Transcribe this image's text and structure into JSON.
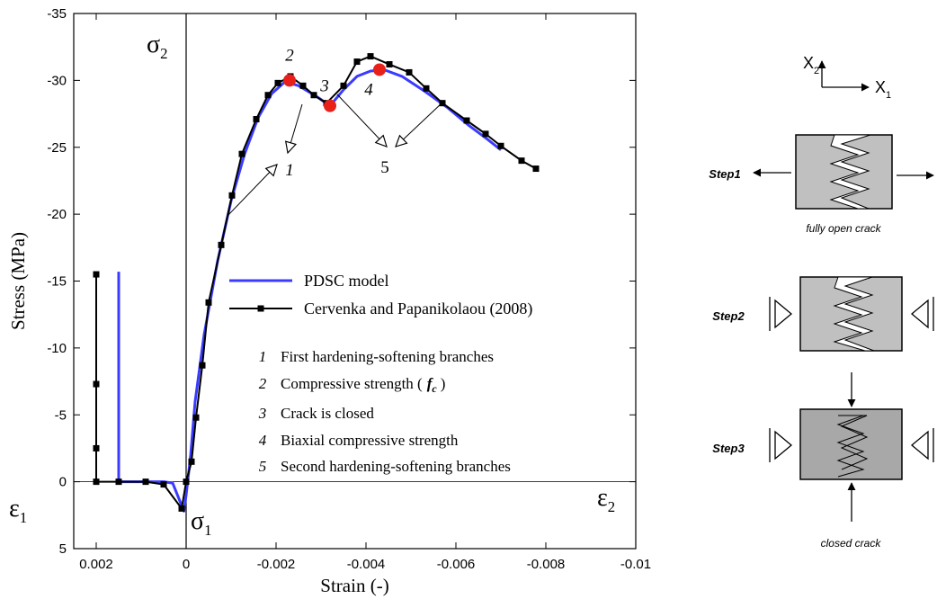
{
  "chart_data": {
    "type": "line",
    "xlabel": "Strain (-)",
    "ylabel": "Stress (MPa)",
    "xlim": [
      0.0025,
      -0.01
    ],
    "ylim": [
      5,
      -35
    ],
    "xticks": [
      0.002,
      0,
      -0.002,
      -0.004,
      -0.006,
      -0.008,
      -0.01
    ],
    "yticks": [
      5,
      0,
      -5,
      -10,
      -15,
      -20,
      -25,
      -30,
      -35
    ],
    "series": [
      {
        "name": "PDSC model",
        "color": "#3b3bff",
        "marker": "none",
        "x": [
          0.0015,
          0.0015,
          0.0005,
          0.0003,
          5e-05,
          0,
          -0.0001,
          -0.0002,
          -0.0004,
          -0.0007,
          -0.001,
          -0.0013,
          -0.0016,
          -0.0019,
          -0.0022,
          -0.0025,
          -0.0029,
          -0.0032,
          -0.0035,
          -0.0038,
          -0.0041,
          -0.0044,
          -0.0048,
          -0.0053,
          -0.0058,
          -0.0063,
          -0.0067,
          -0.007
        ],
        "y": [
          -15.7,
          0,
          0,
          0.1,
          2.2,
          1,
          -2,
          -6,
          -11,
          -16.5,
          -21,
          -24.5,
          -27.2,
          -29,
          -29.9,
          -29.6,
          -28.8,
          -28.1,
          -29.3,
          -30.3,
          -30.7,
          -30.8,
          -30.3,
          -29.2,
          -28,
          -26.6,
          -25.6,
          -24.8
        ]
      },
      {
        "name": "Cervenka and Papanikolaou (2008)",
        "color": "#000000",
        "marker": "square",
        "x": [
          0.002,
          0.002,
          0.002,
          0.002,
          0.0015,
          0.0009,
          0.0005,
          0.0001,
          0,
          -0.00012,
          -0.00022,
          -0.00036,
          -0.0005,
          -0.00078,
          -0.00102,
          -0.00124,
          -0.00156,
          -0.00182,
          -0.00204,
          -0.00232,
          -0.0026,
          -0.00284,
          -0.00312,
          -0.0035,
          -0.0038,
          -0.0041,
          -0.00452,
          -0.00496,
          -0.00534,
          -0.0057,
          -0.00624,
          -0.00666,
          -0.007,
          -0.00746,
          -0.00778
        ],
        "y": [
          -15.5,
          -7.3,
          -2.5,
          0,
          0,
          0,
          0.2,
          2.0,
          0,
          -1.5,
          -4.8,
          -8.7,
          -13.4,
          -17.7,
          -21.4,
          -24.5,
          -27.1,
          -28.9,
          -29.8,
          -30.3,
          -29.6,
          -28.9,
          -28.3,
          -29.6,
          -31.4,
          -31.8,
          -31.2,
          -30.6,
          -29.4,
          -28.3,
          -27.0,
          -26.0,
          -25.1,
          -24.0,
          -23.4
        ]
      }
    ],
    "points": {
      "color": "#e8201a",
      "x": [
        -0.0023,
        -0.0032,
        -0.0043
      ],
      "y": [
        -30,
        -28.1,
        -30.8
      ],
      "labels": [
        "2",
        "3",
        "4"
      ]
    },
    "annotations": [
      "1",
      "5"
    ],
    "axis_symbols": [
      {
        "symbol": "σ",
        "subscript": "2"
      },
      {
        "symbol": "ε",
        "subscript": "1"
      },
      {
        "symbol": "σ",
        "subscript": "1"
      },
      {
        "symbol": "ε",
        "subscript": "2"
      }
    ],
    "notes": [
      {
        "number": "1",
        "text": "First hardening-softening branches"
      },
      {
        "number": "2",
        "text": "Compressive strength (",
        "symbol": "f",
        "subscript": "c",
        "close": ")"
      },
      {
        "number": "3",
        "text": "Crack is closed"
      },
      {
        "number": "4",
        "text": "Biaxial compressive strength"
      },
      {
        "number": "5",
        "text": "Second hardening-softening branches"
      }
    ]
  },
  "diagram": {
    "axes": [
      {
        "symbol": "X",
        "subscript": "2"
      },
      {
        "symbol": "X",
        "subscript": "1"
      }
    ],
    "steps": [
      {
        "label": "Step1",
        "caption": "fully open crack"
      },
      {
        "label": "Step2"
      },
      {
        "label": "Step3",
        "caption": "closed crack"
      }
    ]
  }
}
